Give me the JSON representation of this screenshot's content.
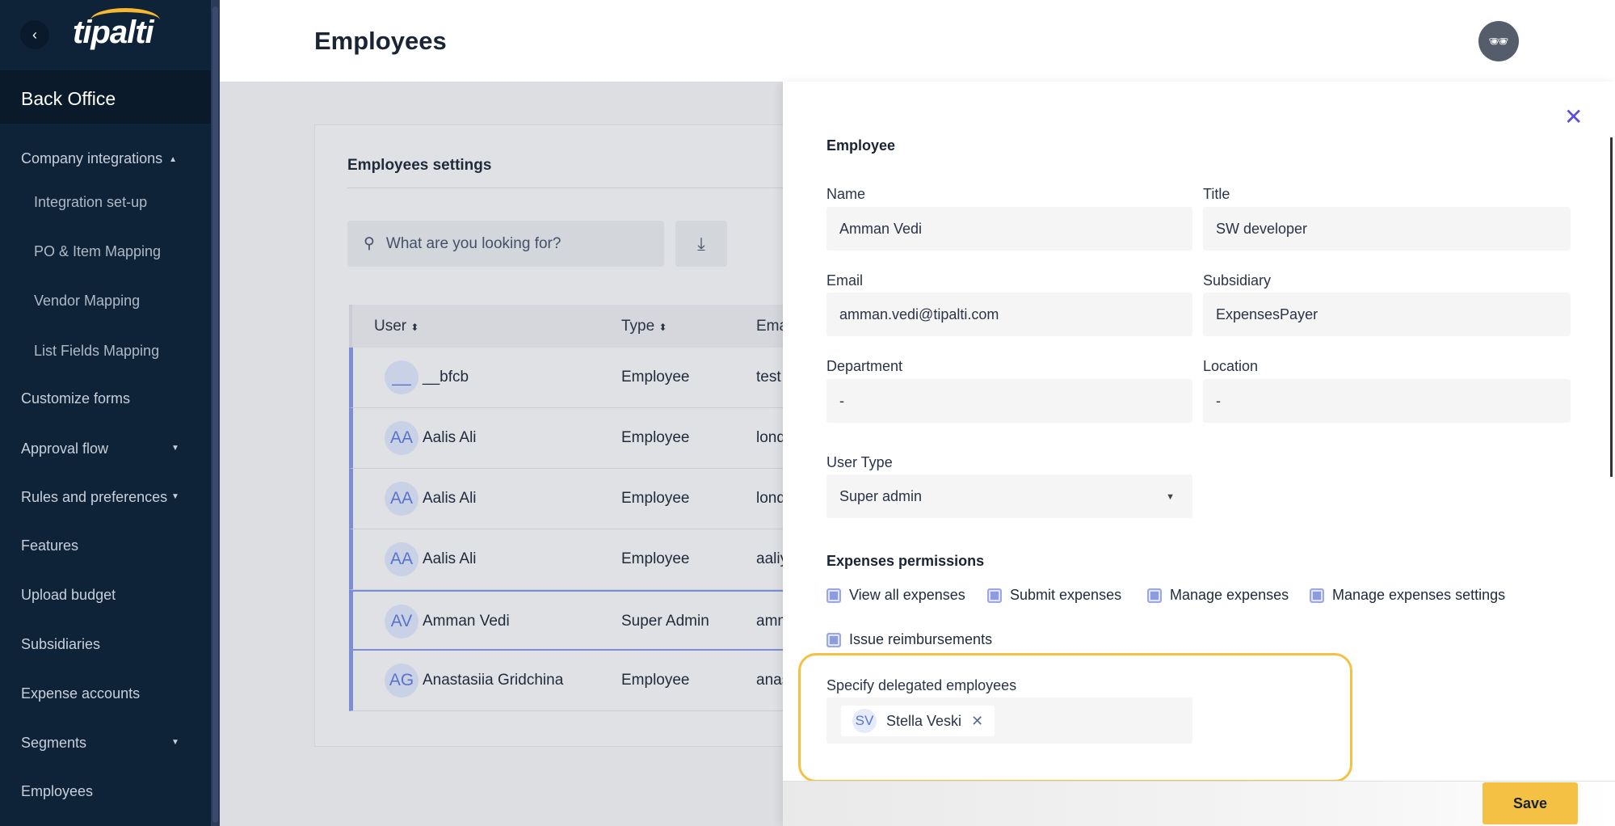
{
  "brand": {
    "logo": "tipalti",
    "accent": "#f5b82e"
  },
  "sidebar": {
    "section": "Back Office",
    "items": [
      {
        "label": "Company integrations",
        "caret": "up"
      },
      {
        "label": "Integration set-up",
        "sub": true
      },
      {
        "label": "PO & Item Mapping",
        "sub": true
      },
      {
        "label": "Vendor Mapping",
        "sub": true
      },
      {
        "label": "List Fields Mapping",
        "sub": true
      },
      {
        "label": "Customize forms"
      },
      {
        "label": "Approval flow",
        "caret": "down"
      },
      {
        "label": "Rules and preferences",
        "caret": "down"
      },
      {
        "label": "Features"
      },
      {
        "label": "Upload budget"
      },
      {
        "label": "Subsidiaries"
      },
      {
        "label": "Expense accounts"
      },
      {
        "label": "Segments",
        "caret": "down"
      },
      {
        "label": "Employees"
      }
    ]
  },
  "header": {
    "title": "Employees",
    "user_icon": "incognito-icon"
  },
  "settings": {
    "title": "Employees settings",
    "search_placeholder": "What are you looking for?",
    "columns": [
      "User",
      "Type",
      "Email"
    ],
    "rows": [
      {
        "initials": "__",
        "name": "__bfcb",
        "type": "Employee",
        "email": "test"
      },
      {
        "initials": "AA",
        "name": "Aalis Ali",
        "type": "Employee",
        "email": "lond"
      },
      {
        "initials": "AA",
        "name": "Aalis Ali",
        "type": "Employee",
        "email": "lond"
      },
      {
        "initials": "AA",
        "name": "Aalis Ali",
        "type": "Employee",
        "email": "aaliy"
      },
      {
        "initials": "AV",
        "name": "Amman Vedi",
        "type": "Super Admin",
        "email": "amn",
        "selected": true
      },
      {
        "initials": "AG",
        "name": "Anastasiia Gridchina",
        "type": "Employee",
        "email": "anas"
      }
    ]
  },
  "panel": {
    "heading": "Employee",
    "fields": {
      "name": {
        "label": "Name",
        "value": "Amman Vedi"
      },
      "title": {
        "label": "Title",
        "value": "SW developer"
      },
      "email": {
        "label": "Email",
        "value": "amman.vedi@tipalti.com"
      },
      "subsidiary": {
        "label": "Subsidiary",
        "value": "ExpensesPayer"
      },
      "department": {
        "label": "Department",
        "value": "-"
      },
      "location": {
        "label": "Location",
        "value": "-"
      },
      "user_type": {
        "label": "User Type",
        "value": "Super admin"
      }
    },
    "permissions_heading": "Expenses permissions",
    "permissions": [
      {
        "label": "View all expenses",
        "checked": true
      },
      {
        "label": "Submit expenses",
        "checked": true
      },
      {
        "label": "Manage expenses",
        "checked": true
      },
      {
        "label": "Manage expenses settings",
        "checked": true
      },
      {
        "label": "Issue reimbursements",
        "checked": true
      }
    ],
    "delegated": {
      "label": "Specify delegated employees",
      "tags": [
        {
          "initials": "SV",
          "name": "Stella Veski"
        }
      ]
    },
    "save_label": "Save",
    "highlight_color": "#f5c144",
    "checkbox_color": "#8d9be0"
  }
}
